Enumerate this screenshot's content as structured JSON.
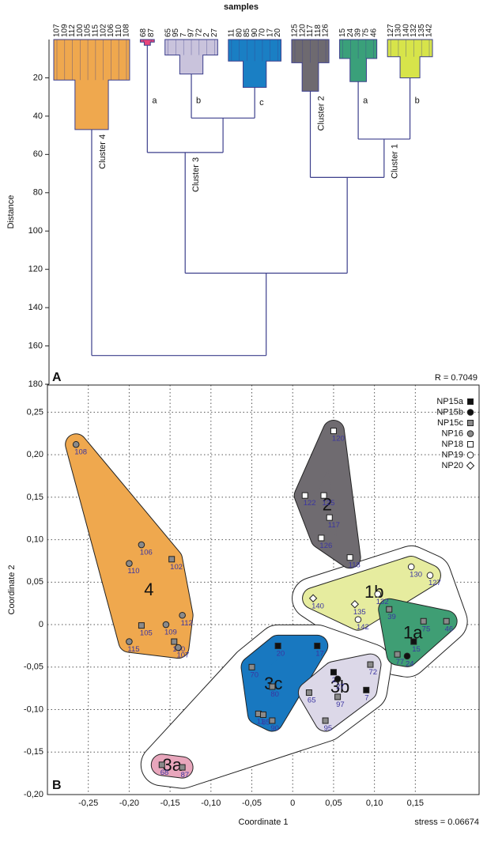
{
  "chart_data": [
    {
      "type": "dendrogram",
      "title": "samples",
      "ylabel": "Distance",
      "panel": "A",
      "annotation": "R = 0.7049",
      "ylim": [
        0,
        180
      ],
      "yticks": [
        20,
        40,
        60,
        80,
        100,
        120,
        140,
        160,
        180
      ],
      "line_color": "#3c3f8c",
      "tree": {
        "height": 165,
        "children": [
          {
            "label": "Cluster 4",
            "leaves": [
              "107",
              "109",
              "112",
              "100",
              "105",
              "115",
              "102",
              "106",
              "110",
              "108"
            ],
            "height": 47,
            "color": "#efa84e"
          },
          {
            "height": 122,
            "children": [
              {
                "label": "Cluster 3",
                "height": 59,
                "children": [
                  {
                    "label": "a",
                    "leaves": [
                      "68",
                      "87"
                    ],
                    "height": 3,
                    "color": "#e8457a"
                  },
                  {
                    "height": 41,
                    "children": [
                      {
                        "label": "b",
                        "leaves": [
                          "65",
                          "95",
                          "7",
                          "97",
                          "72",
                          "2",
                          "27"
                        ],
                        "height": 18,
                        "color": "#c9c3dc"
                      },
                      {
                        "label": "c",
                        "leaves": [
                          "11",
                          "80",
                          "85",
                          "90",
                          "70",
                          "17",
                          "20"
                        ],
                        "height": 25,
                        "color": "#1a7fc4"
                      }
                    ]
                  }
                ]
              },
              {
                "height": 72,
                "children": [
                  {
                    "label": "Cluster 2",
                    "leaves": [
                      "125",
                      "120",
                      "117",
                      "118",
                      "126"
                    ],
                    "height": 27,
                    "color": "#6e6a70"
                  },
                  {
                    "label": "Cluster 1",
                    "height": 52,
                    "children": [
                      {
                        "label": "a",
                        "leaves": [
                          "15",
                          "24",
                          "39",
                          "75",
                          "46"
                        ],
                        "height": 22,
                        "color": "#3aa07a"
                      },
                      {
                        "label": "b",
                        "leaves": [
                          "127",
                          "130",
                          "140",
                          "132",
                          "135",
                          "142"
                        ],
                        "height": 20,
                        "color": "#d7e44a"
                      }
                    ]
                  }
                ]
              }
            ]
          }
        ]
      }
    },
    {
      "type": "scatter",
      "panel": "B",
      "xlabel": "Coordinate 1",
      "ylabel": "Coordinate 2",
      "annotation": "stress = 0.06674",
      "xlim": [
        -0.3,
        0.228
      ],
      "ylim": [
        -0.2,
        0.282
      ],
      "grid": true,
      "legend": "upper right",
      "xticks": [
        {
          "value": -0.25,
          "label": "-0,25"
        },
        {
          "value": -0.2,
          "label": "-0,20"
        },
        {
          "value": -0.15,
          "label": "-0,15"
        },
        {
          "value": -0.1,
          "label": "-0,10"
        },
        {
          "value": -0.05,
          "label": "-0,05"
        },
        0,
        {
          "value": 0.05,
          "label": "0,05"
        },
        {
          "value": 0.1,
          "label": "0,10"
        },
        {
          "value": 0.15,
          "label": "0,15"
        }
      ],
      "yticks": [
        {
          "value": -0.2,
          "label": "-0,20"
        },
        {
          "value": -0.15,
          "label": "-0,15"
        },
        {
          "value": -0.1,
          "label": "-0,10"
        },
        {
          "value": -0.05,
          "label": "-0,05"
        },
        0,
        {
          "value": 0.05,
          "label": "0,05"
        },
        {
          "value": 0.1,
          "label": "0,10"
        },
        {
          "value": 0.15,
          "label": "0,15"
        },
        {
          "value": 0.2,
          "label": "0,20"
        },
        {
          "value": 0.25,
          "label": "0,25"
        }
      ],
      "series": [
        {
          "name": "NP15a",
          "marker": "square",
          "color": "#111111",
          "labels": [
            "15",
            "20",
            "17",
            "2",
            "7"
          ],
          "x": [
            0.148,
            -0.018,
            0.03,
            0.05,
            0.09
          ],
          "y": [
            -0.02,
            -0.025,
            -0.025,
            -0.056,
            -0.077
          ]
        },
        {
          "name": "NP15b",
          "marker": "circle",
          "color": "#111111",
          "labels": [
            "24",
            "27"
          ],
          "x": [
            0.14,
            0.055
          ],
          "y": [
            -0.037,
            -0.064
          ]
        },
        {
          "name": "NP15c",
          "marker": "square",
          "color": "#8a8a8a",
          "labels": [
            "102",
            "105",
            "100",
            "39",
            "75",
            "46",
            "77",
            "70",
            "80",
            "11",
            "85",
            "90",
            "72",
            "65",
            "97",
            "95",
            "68",
            "87"
          ],
          "x": [
            -0.148,
            -0.185,
            -0.145,
            0.118,
            0.16,
            0.188,
            0.128,
            -0.05,
            -0.025,
            -0.042,
            -0.036,
            -0.025,
            0.095,
            0.02,
            0.055,
            0.04,
            -0.16,
            -0.135
          ],
          "y": [
            0.077,
            -0.001,
            -0.02,
            0.018,
            0.004,
            0.004,
            -0.035,
            -0.05,
            -0.073,
            -0.105,
            -0.106,
            -0.113,
            -0.047,
            -0.08,
            -0.085,
            -0.113,
            -0.165,
            -0.168
          ]
        },
        {
          "name": "NP16",
          "marker": "circle",
          "color": "#8a8a8a",
          "labels": [
            "108",
            "106",
            "110",
            "112",
            "109",
            "115",
            "107"
          ],
          "x": [
            -0.265,
            -0.185,
            -0.2,
            -0.135,
            -0.155,
            -0.2,
            -0.14
          ],
          "y": [
            0.212,
            0.094,
            0.072,
            0.011,
            0,
            -0.02,
            -0.027
          ]
        },
        {
          "name": "NP18",
          "marker": "square",
          "color": "#ffffff",
          "labels": [
            "120",
            "122",
            "125",
            "117",
            "126",
            "118"
          ],
          "x": [
            0.05,
            0.015,
            0.038,
            0.045,
            0.035,
            0.07
          ],
          "y": [
            0.228,
            0.152,
            0.152,
            0.126,
            0.102,
            0.079
          ]
        },
        {
          "name": "NP19",
          "marker": "circle",
          "color": "#ffffff",
          "labels": [
            "130",
            "127",
            "132",
            "142"
          ],
          "x": [
            0.145,
            0.168,
            0.104,
            0.08
          ],
          "y": [
            0.068,
            0.058,
            0.036,
            0.006
          ]
        },
        {
          "name": "NP20",
          "marker": "diamond",
          "color": "#ffffff",
          "labels": [
            "140",
            "135"
          ],
          "x": [
            0.025,
            0.076
          ],
          "y": [
            0.031,
            0.024
          ]
        }
      ],
      "regions": [
        {
          "color": "#ffffff",
          "members": [
            "130",
            "127",
            "132",
            "142",
            "140",
            "135",
            "39",
            "75",
            "46",
            "15",
            "24",
            "77"
          ]
        },
        {
          "color": "#ffffff",
          "members": [
            "20",
            "17",
            "70",
            "80",
            "11",
            "85",
            "90",
            "2",
            "27",
            "72",
            "7",
            "65",
            "97",
            "95",
            "68",
            "87"
          ]
        },
        {
          "label": "4",
          "color": "#efa84e",
          "members": [
            "108",
            "106",
            "110",
            "102",
            "112",
            "105",
            "109",
            "100",
            "115",
            "107"
          ]
        },
        {
          "label": "2",
          "color": "#6f6b70",
          "members": [
            "120",
            "122",
            "125",
            "117",
            "126",
            "118"
          ]
        },
        {
          "label": "1b",
          "color": "#e6ec9f",
          "members": [
            "130",
            "127",
            "132",
            "142",
            "140",
            "135"
          ]
        },
        {
          "label": "1a",
          "color": "#3f9e74",
          "members": [
            "39",
            "75",
            "46",
            "15",
            "24",
            "77"
          ]
        },
        {
          "label": "3c",
          "color": "#1878c0",
          "members": [
            "20",
            "17",
            "70",
            "80",
            "11",
            "85",
            "90"
          ]
        },
        {
          "label": "3b",
          "color": "#dcd8e8",
          "members": [
            "2",
            "27",
            "72",
            "7",
            "65",
            "97",
            "95"
          ]
        },
        {
          "label": "3a",
          "color": "#e8a6bc",
          "members": [
            "68",
            "87"
          ]
        }
      ]
    }
  ]
}
